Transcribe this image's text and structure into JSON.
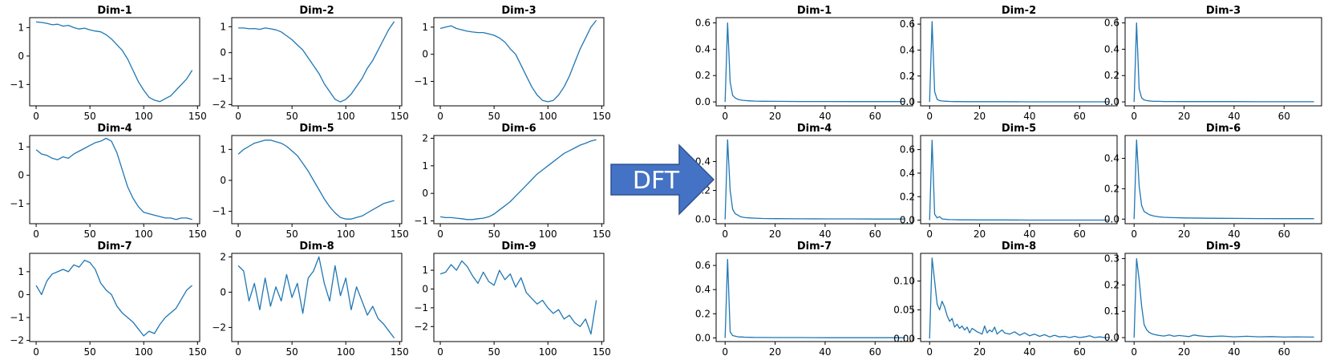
{
  "colors": {
    "series": "#1f77b4",
    "arrow_fill": "#4472c4",
    "arrow_stroke": "#2f528f",
    "arrow_text": "#ffffff"
  },
  "arrow": {
    "label": "DFT"
  },
  "chart_data": [
    {
      "type": "line",
      "title": "Dim-1",
      "group": "time",
      "grid": false,
      "xlim": [
        -6,
        152
      ],
      "ylim": [
        -1.75,
        1.35
      ],
      "xticks": [
        0,
        50,
        100,
        150
      ],
      "yticks": [
        -1,
        0,
        1
      ],
      "xtick_labels": [
        "0",
        "50",
        "100",
        "150"
      ],
      "ytick_labels": [
        "−1",
        "0",
        "1"
      ],
      "x_start": 0,
      "x_step": 5,
      "values": [
        1.2,
        1.18,
        1.15,
        1.1,
        1.12,
        1.05,
        1.08,
        1.0,
        0.95,
        0.98,
        0.92,
        0.88,
        0.85,
        0.75,
        0.6,
        0.4,
        0.2,
        -0.1,
        -0.5,
        -0.9,
        -1.2,
        -1.45,
        -1.55,
        -1.6,
        -1.5,
        -1.4,
        -1.2,
        -1.0,
        -0.8,
        -0.5
      ]
    },
    {
      "type": "line",
      "title": "Dim-2",
      "group": "time",
      "grid": false,
      "xlim": [
        -6,
        152
      ],
      "ylim": [
        -2.05,
        1.35
      ],
      "xticks": [
        0,
        50,
        100,
        150
      ],
      "yticks": [
        -2,
        -1,
        0,
        1
      ],
      "xtick_labels": [
        "0",
        "50",
        "100",
        "150"
      ],
      "ytick_labels": [
        "−2",
        "−1",
        "0",
        "1"
      ],
      "x_start": 0,
      "x_step": 5,
      "values": [
        0.95,
        0.95,
        0.92,
        0.93,
        0.9,
        0.95,
        0.92,
        0.88,
        0.8,
        0.65,
        0.5,
        0.3,
        0.1,
        -0.2,
        -0.5,
        -0.8,
        -1.2,
        -1.5,
        -1.8,
        -1.9,
        -1.8,
        -1.6,
        -1.3,
        -1.0,
        -0.6,
        -0.3,
        0.1,
        0.5,
        0.9,
        1.2
      ]
    },
    {
      "type": "line",
      "title": "Dim-3",
      "group": "time",
      "grid": false,
      "xlim": [
        -6,
        152
      ],
      "ylim": [
        -1.9,
        1.35
      ],
      "xticks": [
        0,
        50,
        100,
        150
      ],
      "yticks": [
        -1,
        0,
        1
      ],
      "xtick_labels": [
        "0",
        "50",
        "100",
        "150"
      ],
      "ytick_labels": [
        "−1",
        "0",
        "1"
      ],
      "x_start": 0,
      "x_step": 5,
      "values": [
        0.95,
        1.0,
        1.05,
        0.95,
        0.9,
        0.85,
        0.82,
        0.8,
        0.8,
        0.75,
        0.7,
        0.6,
        0.45,
        0.2,
        0.0,
        -0.4,
        -0.8,
        -1.2,
        -1.5,
        -1.7,
        -1.75,
        -1.7,
        -1.5,
        -1.2,
        -0.8,
        -0.3,
        0.2,
        0.6,
        1.0,
        1.25
      ]
    },
    {
      "type": "line",
      "title": "Dim-4",
      "group": "time",
      "grid": false,
      "xlim": [
        -6,
        152
      ],
      "ylim": [
        -1.7,
        1.4
      ],
      "xticks": [
        0,
        50,
        100,
        150
      ],
      "yticks": [
        -1,
        0,
        1
      ],
      "xtick_labels": [
        "0",
        "50",
        "100",
        "150"
      ],
      "ytick_labels": [
        "−1",
        "0",
        "1"
      ],
      "x_start": 0,
      "x_step": 5,
      "values": [
        0.9,
        0.75,
        0.7,
        0.6,
        0.55,
        0.65,
        0.6,
        0.75,
        0.85,
        0.95,
        1.05,
        1.15,
        1.2,
        1.3,
        1.2,
        0.8,
        0.2,
        -0.4,
        -0.8,
        -1.1,
        -1.3,
        -1.35,
        -1.4,
        -1.45,
        -1.5,
        -1.5,
        -1.55,
        -1.5,
        -1.5,
        -1.55
      ]
    },
    {
      "type": "line",
      "title": "Dim-5",
      "group": "time",
      "grid": false,
      "xlim": [
        -6,
        152
      ],
      "ylim": [
        -1.4,
        1.45
      ],
      "xticks": [
        0,
        50,
        100,
        150
      ],
      "yticks": [
        -1,
        0,
        1
      ],
      "xtick_labels": [
        "0",
        "50",
        "100",
        "150"
      ],
      "ytick_labels": [
        "−1",
        "0",
        "1"
      ],
      "x_start": 0,
      "x_step": 5,
      "values": [
        0.85,
        1.0,
        1.1,
        1.2,
        1.25,
        1.3,
        1.3,
        1.25,
        1.2,
        1.1,
        0.95,
        0.8,
        0.55,
        0.3,
        0.0,
        -0.3,
        -0.6,
        -0.85,
        -1.05,
        -1.2,
        -1.25,
        -1.25,
        -1.2,
        -1.15,
        -1.05,
        -0.95,
        -0.85,
        -0.75,
        -0.7,
        -0.65
      ]
    },
    {
      "type": "line",
      "title": "Dim-6",
      "group": "time",
      "grid": false,
      "xlim": [
        -6,
        152
      ],
      "ylim": [
        -1.1,
        2.1
      ],
      "xticks": [
        0,
        50,
        100,
        150
      ],
      "yticks": [
        -1,
        0,
        1,
        2
      ],
      "xtick_labels": [
        "0",
        "50",
        "100",
        "150"
      ],
      "ytick_labels": [
        "−1",
        "0",
        "1",
        "2"
      ],
      "x_start": 0,
      "x_step": 5,
      "values": [
        -0.85,
        -0.88,
        -0.88,
        -0.9,
        -0.92,
        -0.95,
        -0.95,
        -0.92,
        -0.9,
        -0.85,
        -0.75,
        -0.6,
        -0.45,
        -0.3,
        -0.1,
        0.1,
        0.3,
        0.5,
        0.7,
        0.85,
        1.0,
        1.15,
        1.3,
        1.45,
        1.55,
        1.65,
        1.75,
        1.82,
        1.9,
        1.95
      ]
    },
    {
      "type": "line",
      "title": "Dim-7",
      "group": "time",
      "grid": false,
      "xlim": [
        -6,
        152
      ],
      "ylim": [
        -2.05,
        1.8
      ],
      "xticks": [
        0,
        50,
        100,
        150
      ],
      "yticks": [
        -2,
        -1,
        0,
        1
      ],
      "xtick_labels": [
        "0",
        "50",
        "100",
        "150"
      ],
      "ytick_labels": [
        "−2",
        "−1",
        "0",
        "1"
      ],
      "x_start": 0,
      "x_step": 5,
      "values": [
        0.4,
        0.0,
        0.6,
        0.9,
        1.0,
        1.1,
        1.0,
        1.3,
        1.2,
        1.5,
        1.4,
        1.1,
        0.5,
        0.2,
        0.0,
        -0.5,
        -0.8,
        -1.0,
        -1.2,
        -1.5,
        -1.8,
        -1.6,
        -1.7,
        -1.3,
        -1.0,
        -0.8,
        -0.6,
        -0.2,
        0.2,
        0.4
      ]
    },
    {
      "type": "line",
      "title": "Dim-8",
      "group": "time",
      "grid": false,
      "xlim": [
        -6,
        152
      ],
      "ylim": [
        -2.8,
        2.2
      ],
      "xticks": [
        0,
        50,
        100,
        150
      ],
      "yticks": [
        -2,
        0,
        2
      ],
      "xtick_labels": [
        "0",
        "50",
        "100",
        "150"
      ],
      "ytick_labels": [
        "−2",
        "0",
        "2"
      ],
      "x_start": 0,
      "x_step": 5,
      "values": [
        1.5,
        1.2,
        -0.5,
        0.5,
        -1.0,
        0.8,
        -0.8,
        0.3,
        -0.5,
        1.0,
        -0.3,
        0.5,
        -1.2,
        0.8,
        1.2,
        2.0,
        0.5,
        -0.5,
        1.5,
        -0.2,
        0.8,
        -1.0,
        0.3,
        -0.5,
        -1.3,
        -0.8,
        -1.5,
        -1.8,
        -2.2,
        -2.6
      ]
    },
    {
      "type": "line",
      "title": "Dim-9",
      "group": "time",
      "grid": false,
      "xlim": [
        -6,
        152
      ],
      "ylim": [
        -2.8,
        1.9
      ],
      "xticks": [
        0,
        50,
        100,
        150
      ],
      "yticks": [
        -2,
        -1,
        0,
        1
      ],
      "xtick_labels": [
        "0",
        "50",
        "100",
        "150"
      ],
      "ytick_labels": [
        "−2",
        "−1",
        "0",
        "1"
      ],
      "x_start": 0,
      "x_step": 5,
      "values": [
        0.8,
        0.9,
        1.3,
        1.0,
        1.5,
        1.2,
        0.7,
        0.3,
        0.9,
        0.4,
        0.2,
        1.0,
        0.5,
        0.8,
        0.1,
        0.6,
        -0.2,
        -0.5,
        -0.8,
        -0.6,
        -1.0,
        -1.3,
        -1.1,
        -1.6,
        -1.4,
        -1.8,
        -2.0,
        -1.6,
        -2.4,
        -0.6
      ]
    },
    {
      "type": "line",
      "title": "Dim-1",
      "group": "dft",
      "grid": false,
      "xlim": [
        -3.6,
        75
      ],
      "ylim": [
        -0.03,
        0.64
      ],
      "xticks": [
        0,
        20,
        40,
        60
      ],
      "yticks": [
        0,
        0.2,
        0.4,
        0.6
      ],
      "xtick_labels": [
        "0",
        "20",
        "40",
        "60"
      ],
      "ytick_labels": [
        "0.0",
        "0.2",
        "0.4",
        "0.6"
      ],
      "x": [
        0,
        1,
        2,
        3,
        4,
        5,
        6,
        7,
        8,
        10,
        12,
        15,
        20,
        30,
        40,
        50,
        60,
        72
      ],
      "values": [
        0.0,
        0.6,
        0.15,
        0.05,
        0.03,
        0.02,
        0.015,
        0.012,
        0.01,
        0.008,
        0.006,
        0.005,
        0.004,
        0.003,
        0.003,
        0.002,
        0.002,
        0.002
      ]
    },
    {
      "type": "line",
      "title": "Dim-2",
      "group": "dft",
      "grid": false,
      "xlim": [
        -3.6,
        75
      ],
      "ylim": [
        -0.03,
        0.65
      ],
      "xticks": [
        0,
        20,
        40,
        60
      ],
      "yticks": [
        0,
        0.2,
        0.4,
        0.6
      ],
      "xtick_labels": [
        "0",
        "20",
        "40",
        "60"
      ],
      "ytick_labels": [
        "0.0",
        "0.2",
        "0.4",
        "0.6"
      ],
      "x": [
        0,
        1,
        2,
        3,
        4,
        5,
        6,
        7,
        8,
        10,
        12,
        15,
        20,
        30,
        40,
        50,
        60,
        72
      ],
      "values": [
        0.0,
        0.62,
        0.08,
        0.02,
        0.01,
        0.008,
        0.006,
        0.005,
        0.004,
        0.003,
        0.003,
        0.002,
        0.002,
        0.002,
        0.001,
        0.001,
        0.001,
        0.001
      ]
    },
    {
      "type": "line",
      "title": "Dim-3",
      "group": "dft",
      "grid": false,
      "xlim": [
        -3.6,
        75
      ],
      "ylim": [
        -0.03,
        0.64
      ],
      "xticks": [
        0,
        20,
        40,
        60
      ],
      "yticks": [
        0,
        0.2,
        0.4,
        0.6
      ],
      "xtick_labels": [
        "0",
        "20",
        "40",
        "60"
      ],
      "ytick_labels": [
        "0.0",
        "0.2",
        "0.4",
        "0.6"
      ],
      "x": [
        0,
        1,
        2,
        3,
        4,
        5,
        6,
        7,
        8,
        10,
        12,
        15,
        20,
        30,
        40,
        50,
        60,
        72
      ],
      "values": [
        0.0,
        0.6,
        0.1,
        0.03,
        0.015,
        0.01,
        0.008,
        0.006,
        0.005,
        0.004,
        0.003,
        0.003,
        0.002,
        0.002,
        0.002,
        0.001,
        0.001,
        0.001
      ]
    },
    {
      "type": "line",
      "title": "Dim-4",
      "group": "dft",
      "grid": false,
      "xlim": [
        -3.6,
        75
      ],
      "ylim": [
        -0.03,
        0.58
      ],
      "xticks": [
        0,
        20,
        40,
        60
      ],
      "yticks": [
        0,
        0.2,
        0.4
      ],
      "xtick_labels": [
        "0",
        "20",
        "40",
        "60"
      ],
      "ytick_labels": [
        "0.0",
        "0.2",
        "0.4"
      ],
      "x": [
        0,
        1,
        2,
        3,
        4,
        5,
        6,
        7,
        8,
        10,
        12,
        15,
        20,
        30,
        40,
        50,
        60,
        72
      ],
      "values": [
        0.0,
        0.55,
        0.2,
        0.07,
        0.04,
        0.03,
        0.02,
        0.015,
        0.012,
        0.01,
        0.008,
        0.006,
        0.005,
        0.004,
        0.003,
        0.003,
        0.002,
        0.002
      ]
    },
    {
      "type": "line",
      "title": "Dim-5",
      "group": "dft",
      "grid": false,
      "xlim": [
        -3.6,
        75
      ],
      "ylim": [
        -0.03,
        0.72
      ],
      "xticks": [
        0,
        20,
        40,
        60
      ],
      "yticks": [
        0,
        0.2,
        0.4,
        0.6
      ],
      "xtick_labels": [
        "0",
        "20",
        "40",
        "60"
      ],
      "ytick_labels": [
        "0.0",
        "0.2",
        "0.4",
        "0.6"
      ],
      "x": [
        0,
        1,
        2,
        3,
        4,
        5,
        6,
        7,
        8,
        10,
        12,
        15,
        20,
        30,
        40,
        50,
        60,
        72
      ],
      "values": [
        0.0,
        0.68,
        0.05,
        0.02,
        0.03,
        0.01,
        0.008,
        0.006,
        0.005,
        0.004,
        0.003,
        0.003,
        0.002,
        0.002,
        0.001,
        0.001,
        0.001,
        0.001
      ]
    },
    {
      "type": "line",
      "title": "Dim-6",
      "group": "dft",
      "grid": false,
      "xlim": [
        -3.6,
        75
      ],
      "ylim": [
        -0.03,
        0.55
      ],
      "xticks": [
        0,
        20,
        40,
        60
      ],
      "yticks": [
        0,
        0.2,
        0.4
      ],
      "xtick_labels": [
        "0",
        "20",
        "40",
        "60"
      ],
      "ytick_labels": [
        "0.0",
        "0.2",
        "0.4"
      ],
      "x": [
        0,
        1,
        2,
        3,
        4,
        5,
        6,
        7,
        8,
        10,
        12,
        15,
        20,
        30,
        40,
        50,
        60,
        72
      ],
      "values": [
        0.0,
        0.52,
        0.22,
        0.09,
        0.05,
        0.04,
        0.03,
        0.025,
        0.02,
        0.015,
        0.012,
        0.01,
        0.008,
        0.006,
        0.005,
        0.004,
        0.003,
        0.003
      ]
    },
    {
      "type": "line",
      "title": "Dim-7",
      "group": "dft",
      "grid": false,
      "xlim": [
        -3.6,
        75
      ],
      "ylim": [
        -0.03,
        0.7
      ],
      "xticks": [
        0,
        20,
        40,
        60
      ],
      "yticks": [
        0,
        0.2,
        0.4,
        0.6
      ],
      "xtick_labels": [
        "0",
        "20",
        "40",
        "60"
      ],
      "ytick_labels": [
        "0.0",
        "0.2",
        "0.4",
        "0.6"
      ],
      "x": [
        0,
        1,
        2,
        3,
        4,
        5,
        6,
        7,
        8,
        10,
        12,
        15,
        20,
        30,
        40,
        50,
        60,
        72
      ],
      "values": [
        0.0,
        0.65,
        0.05,
        0.02,
        0.015,
        0.01,
        0.008,
        0.008,
        0.006,
        0.005,
        0.004,
        0.004,
        0.003,
        0.003,
        0.002,
        0.002,
        0.002,
        0.002
      ]
    },
    {
      "type": "line",
      "title": "Dim-8",
      "group": "dft",
      "grid": false,
      "xlim": [
        -3.6,
        75
      ],
      "ylim": [
        -0.005,
        0.148
      ],
      "xticks": [
        0,
        20,
        40,
        60
      ],
      "yticks": [
        0,
        0.05,
        0.1
      ],
      "xtick_labels": [
        "0",
        "20",
        "40",
        "60"
      ],
      "ytick_labels": [
        "0.00",
        "0.05",
        "0.10"
      ],
      "x": [
        0,
        1,
        2,
        3,
        4,
        5,
        6,
        7,
        8,
        9,
        10,
        11,
        12,
        13,
        14,
        15,
        16,
        17,
        18,
        19,
        20,
        21,
        22,
        23,
        24,
        25,
        26,
        27,
        28,
        29,
        30,
        32,
        34,
        36,
        38,
        40,
        42,
        44,
        46,
        48,
        50,
        52,
        54,
        56,
        58,
        60,
        62,
        64,
        66,
        68,
        70,
        72
      ],
      "values": [
        0.0,
        0.14,
        0.1,
        0.06,
        0.05,
        0.065,
        0.055,
        0.04,
        0.03,
        0.035,
        0.02,
        0.025,
        0.018,
        0.022,
        0.015,
        0.02,
        0.01,
        0.018,
        0.015,
        0.012,
        0.01,
        0.008,
        0.022,
        0.01,
        0.015,
        0.012,
        0.02,
        0.008,
        0.012,
        0.015,
        0.01,
        0.008,
        0.012,
        0.006,
        0.01,
        0.005,
        0.008,
        0.004,
        0.007,
        0.003,
        0.006,
        0.003,
        0.004,
        0.002,
        0.004,
        0.002,
        0.003,
        0.005,
        0.002,
        0.003,
        0.002,
        0.002
      ]
    },
    {
      "type": "line",
      "title": "Dim-9",
      "group": "dft",
      "grid": false,
      "xlim": [
        -3.6,
        75
      ],
      "ylim": [
        -0.015,
        0.32
      ],
      "xticks": [
        0,
        20,
        40,
        60
      ],
      "yticks": [
        0,
        0.1,
        0.2,
        0.3
      ],
      "xtick_labels": [
        "0",
        "20",
        "40",
        "60"
      ],
      "ytick_labels": [
        "0.0",
        "0.1",
        "0.2",
        "0.3"
      ],
      "x": [
        0,
        1,
        2,
        3,
        4,
        5,
        6,
        7,
        8,
        9,
        10,
        12,
        14,
        16,
        18,
        20,
        22,
        24,
        26,
        28,
        30,
        35,
        40,
        45,
        50,
        55,
        60,
        65,
        70,
        72
      ],
      "values": [
        0.0,
        0.3,
        0.22,
        0.12,
        0.05,
        0.03,
        0.02,
        0.015,
        0.012,
        0.01,
        0.008,
        0.006,
        0.01,
        0.005,
        0.008,
        0.006,
        0.004,
        0.01,
        0.007,
        0.005,
        0.004,
        0.006,
        0.003,
        0.005,
        0.003,
        0.004,
        0.002,
        0.003,
        0.002,
        0.002
      ]
    }
  ]
}
